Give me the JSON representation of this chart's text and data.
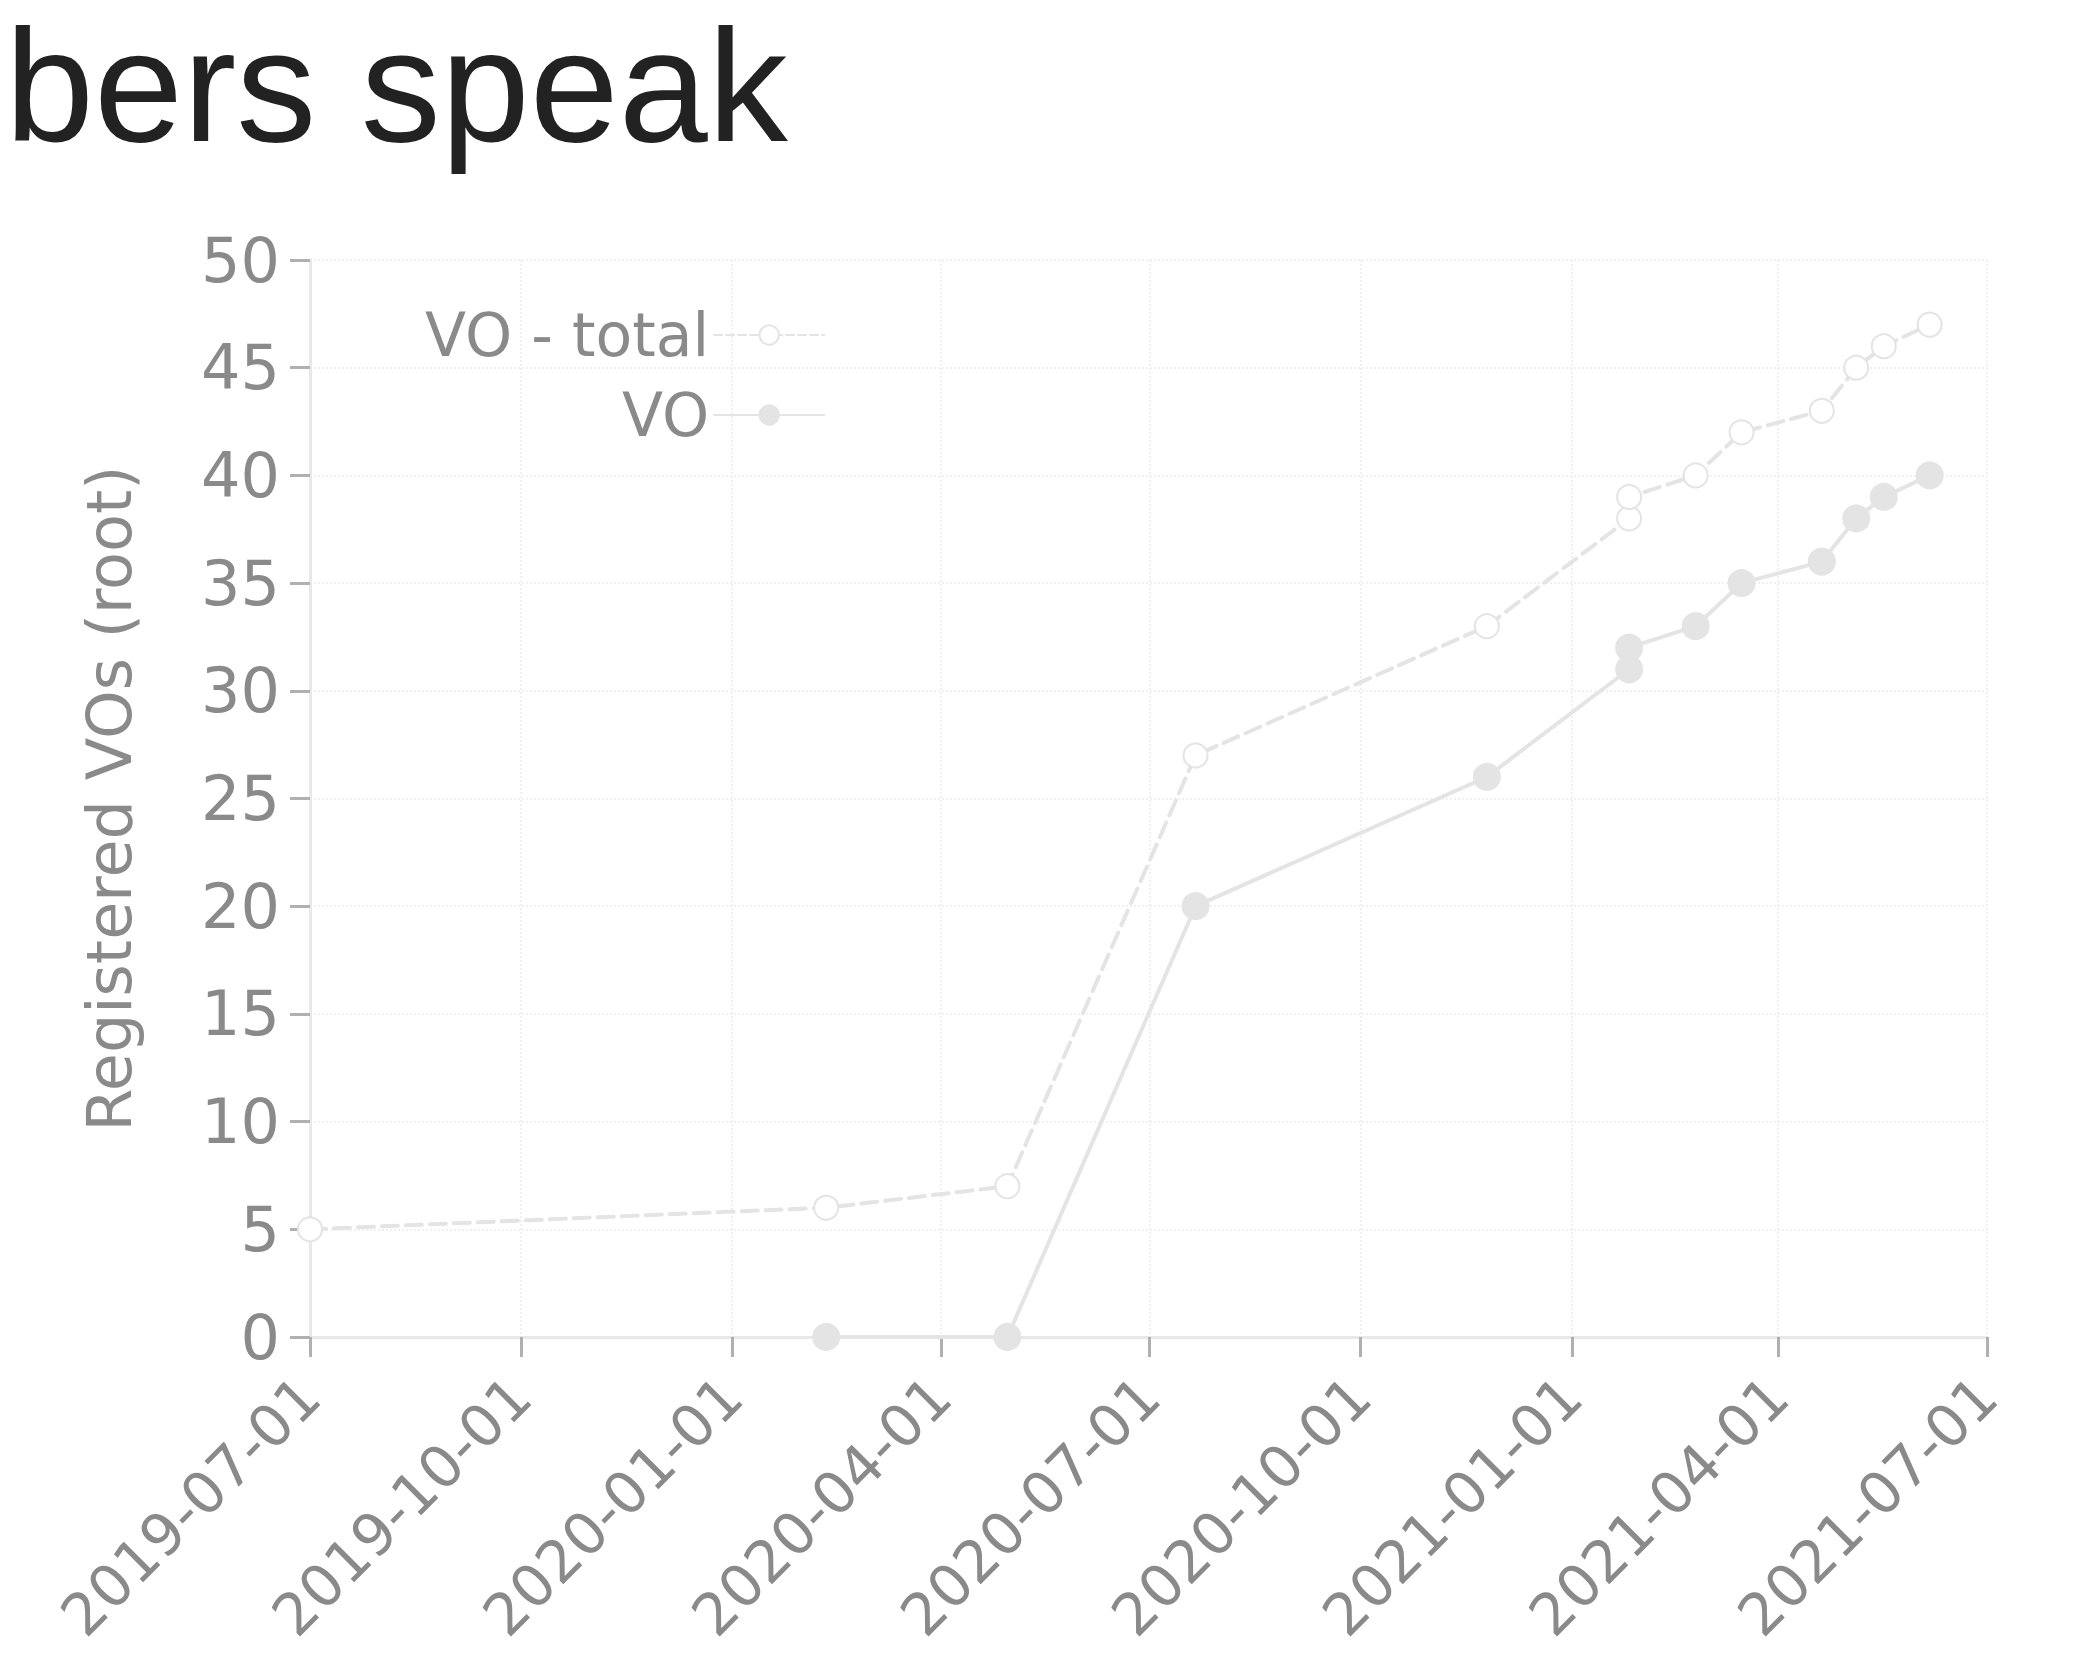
{
  "chart_data": {
    "type": "line",
    "title": "bers speak",
    "ylabel": "Registered VOs (root)",
    "xlim": [
      "2019-07-01",
      "2021-07-01"
    ],
    "xticks": [
      "2019-07-01",
      "2019-10-01",
      "2020-01-01",
      "2020-04-01",
      "2020-07-01",
      "2020-10-01",
      "2021-01-01",
      "2021-04-01",
      "2021-07-01"
    ],
    "ylim": [
      0,
      50
    ],
    "yticks": [
      0,
      5,
      10,
      15,
      20,
      25,
      30,
      35,
      40,
      45,
      50
    ],
    "grid": true,
    "legend": "top left",
    "marker": "circle",
    "series": [
      {
        "name": "VO - total",
        "color": "#e4e4e4",
        "line_style": "dashed",
        "x": [
          "2019-07-01",
          "2020-02-11",
          "2020-04-30",
          "2020-07-21",
          "2020-11-25",
          "2021-01-26",
          "2021-01-26",
          "2021-02-24",
          "2021-03-16",
          "2021-04-20",
          "2021-05-05",
          "2021-05-17",
          "2021-06-06"
        ],
        "values": [
          5,
          6,
          7,
          27,
          33,
          38,
          39,
          40,
          42,
          43,
          45,
          46,
          47
        ]
      },
      {
        "name": "VO",
        "color": "#e4e4e4",
        "line_style": "solid",
        "x": [
          "2020-02-11",
          "2020-04-30",
          "2020-07-21",
          "2020-11-25",
          "2021-01-26",
          "2021-01-26",
          "2021-02-24",
          "2021-03-16",
          "2021-04-20",
          "2021-05-05",
          "2021-05-17",
          "2021-06-06"
        ],
        "values": [
          0,
          0,
          20,
          26,
          31,
          32,
          33,
          35,
          36,
          38,
          39,
          40
        ]
      }
    ]
  }
}
